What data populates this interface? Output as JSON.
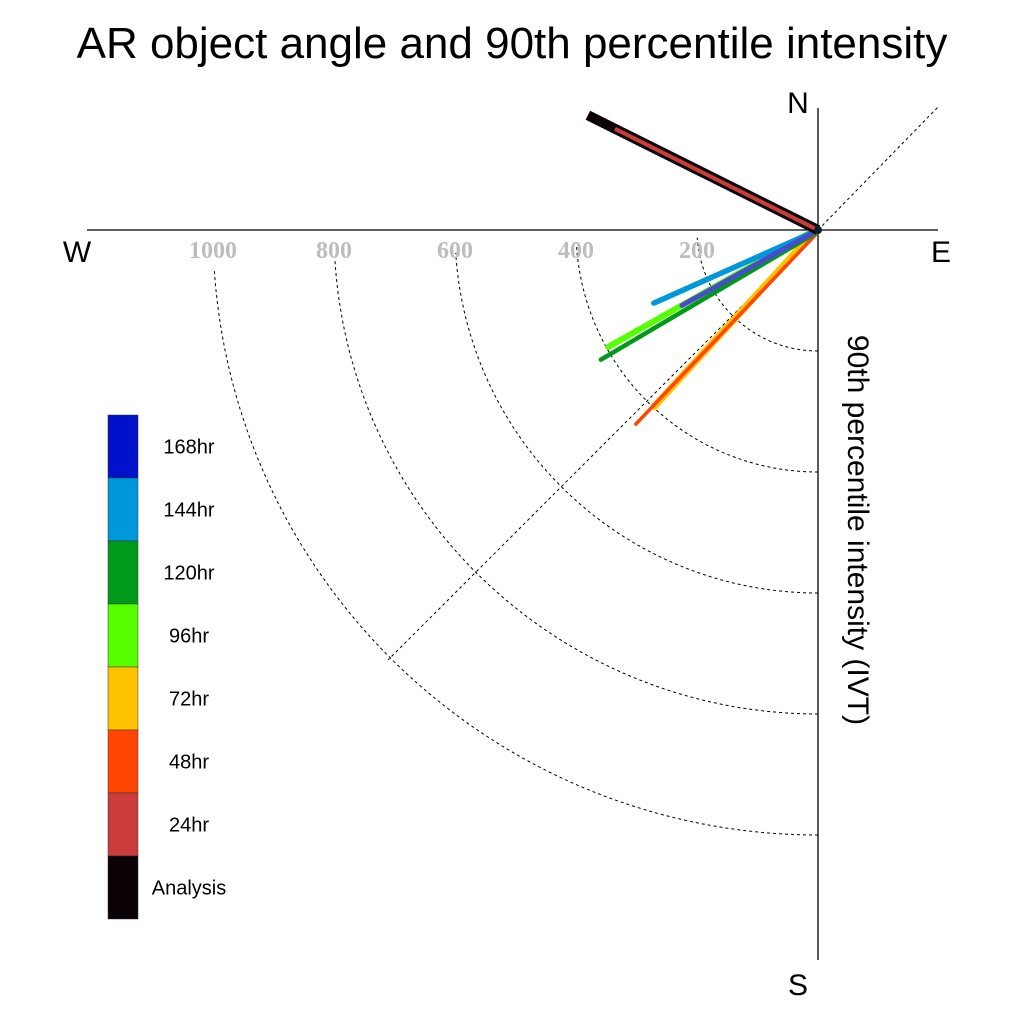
{
  "chart_data": {
    "type": "polar-vector",
    "title": "AR object angle and 90th percentile intensity",
    "ylabel": "90th percentile intensity (IVT)",
    "compass": {
      "north": "N",
      "south": "S",
      "east": "E",
      "west": "W"
    },
    "radial_ticks": [
      200,
      400,
      600,
      800,
      1000
    ],
    "radial_tick_labels": [
      "200",
      "400",
      "600",
      "800",
      "1000"
    ],
    "radial_range": [
      0,
      1200
    ],
    "grid": true,
    "legend_placement": "left",
    "series": [
      {
        "name": "Analysis",
        "color": "#0b0208",
        "magnitude": 425,
        "direction_deg": 296.5
      },
      {
        "name": "24hr",
        "color": "#cc3c3c",
        "magnitude": 375,
        "direction_deg": 296.5
      },
      {
        "name": "48hr",
        "color": "#ff4500",
        "magnitude": 440,
        "direction_deg": 223.5
      },
      {
        "name": "72hr",
        "color": "#ffc200",
        "magnitude": 398,
        "direction_deg": 222.5
      },
      {
        "name": "96hr",
        "color": "#55ff00",
        "magnitude": 397,
        "direction_deg": 240.5
      },
      {
        "name": "120hr",
        "color": "#009a1b",
        "magnitude": 418,
        "direction_deg": 239.5
      },
      {
        "name": "144hr",
        "color": "#0098db",
        "magnitude": 297,
        "direction_deg": 246.0
      },
      {
        "name": "168hr",
        "color": "#0011cc",
        "magnitude": 257,
        "direction_deg": 241.0,
        "display_color": "#4a4acd"
      }
    ]
  }
}
